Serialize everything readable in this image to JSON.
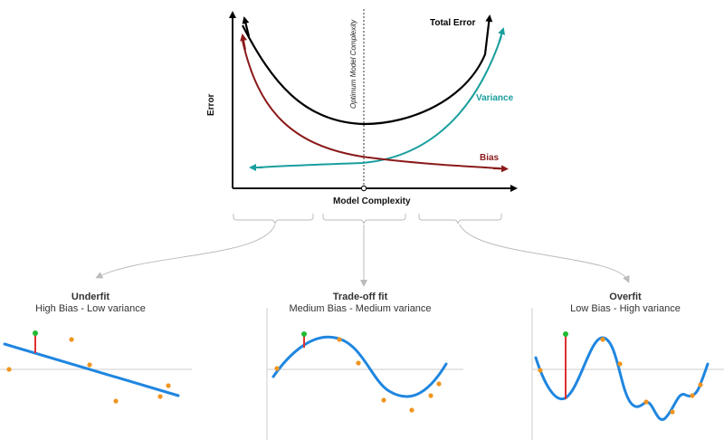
{
  "top_chart": {
    "y_axis_label": "Error",
    "x_axis_label": "Model Complexity",
    "optimum_label": "Optimum Model Complexity",
    "curves": {
      "total_error": {
        "label": "Total Error",
        "color": "#000000"
      },
      "variance": {
        "label": "Variance",
        "color": "#1a9e9e"
      },
      "bias": {
        "label": "Bias",
        "color": "#8b1a1a"
      }
    }
  },
  "panels": [
    {
      "title": "Underfit",
      "subtitle": "High Bias - Low variance"
    },
    {
      "title": "Trade-off fit",
      "subtitle": "Medium Bias - Medium variance"
    },
    {
      "title": "Overfit",
      "subtitle": "Low Bias - High variance"
    }
  ],
  "colors": {
    "fit_line": "#1f86e0",
    "points": "#f0951f",
    "highlight_point": "#22bb33",
    "residual": "#e03030",
    "axis": "#111111",
    "panel_axis": "#bbbbbb",
    "bracket": "#bbbbbb"
  }
}
